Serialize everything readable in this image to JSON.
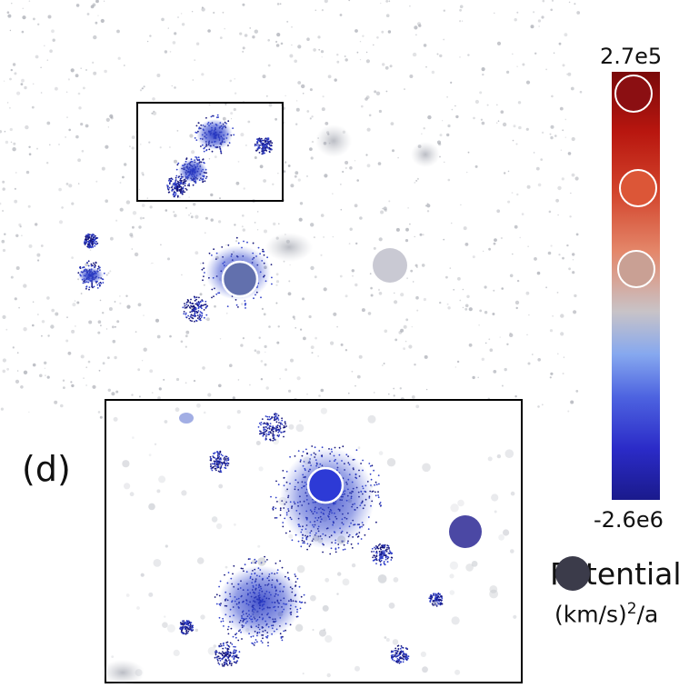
{
  "panel_label": "(d)",
  "colorbar": {
    "max_label": "2.7e5",
    "min_label": "-2.6e6",
    "title": "Potential",
    "unit_base": "(km/s)",
    "unit_exp": "2",
    "unit_tail": "/a",
    "gradient_stops": [
      "#7a0a0a",
      "#b8160f",
      "#d2432b",
      "#e4876a",
      "#c8c3c7",
      "#86a8ef",
      "#4d63e0",
      "#2b2bc8",
      "#1a1a8c"
    ]
  },
  "colors": {
    "particles_blue": "#2f3fc9",
    "particles_dark": "#15157a",
    "background_gray": "#b9bcc4",
    "marker_dark": "#3b3b4a",
    "marker_purple": "#4b48a4",
    "marker_blue": "#2d3ad6",
    "marker_steel": "#6270ad",
    "marker_light": "#c9c9d3"
  }
}
